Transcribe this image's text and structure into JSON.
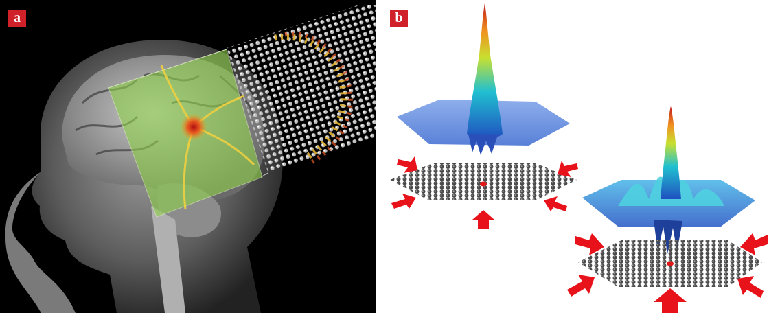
{
  "panels": [
    {
      "label": "a"
    },
    {
      "label": "b"
    }
  ],
  "colors": {
    "label_bg": "#d0202a",
    "arrow": "#e8121a",
    "green_overlay": "#8fd24a",
    "grid_plate": "#3a3a3a",
    "surface_blue": "#3d6fd6"
  }
}
